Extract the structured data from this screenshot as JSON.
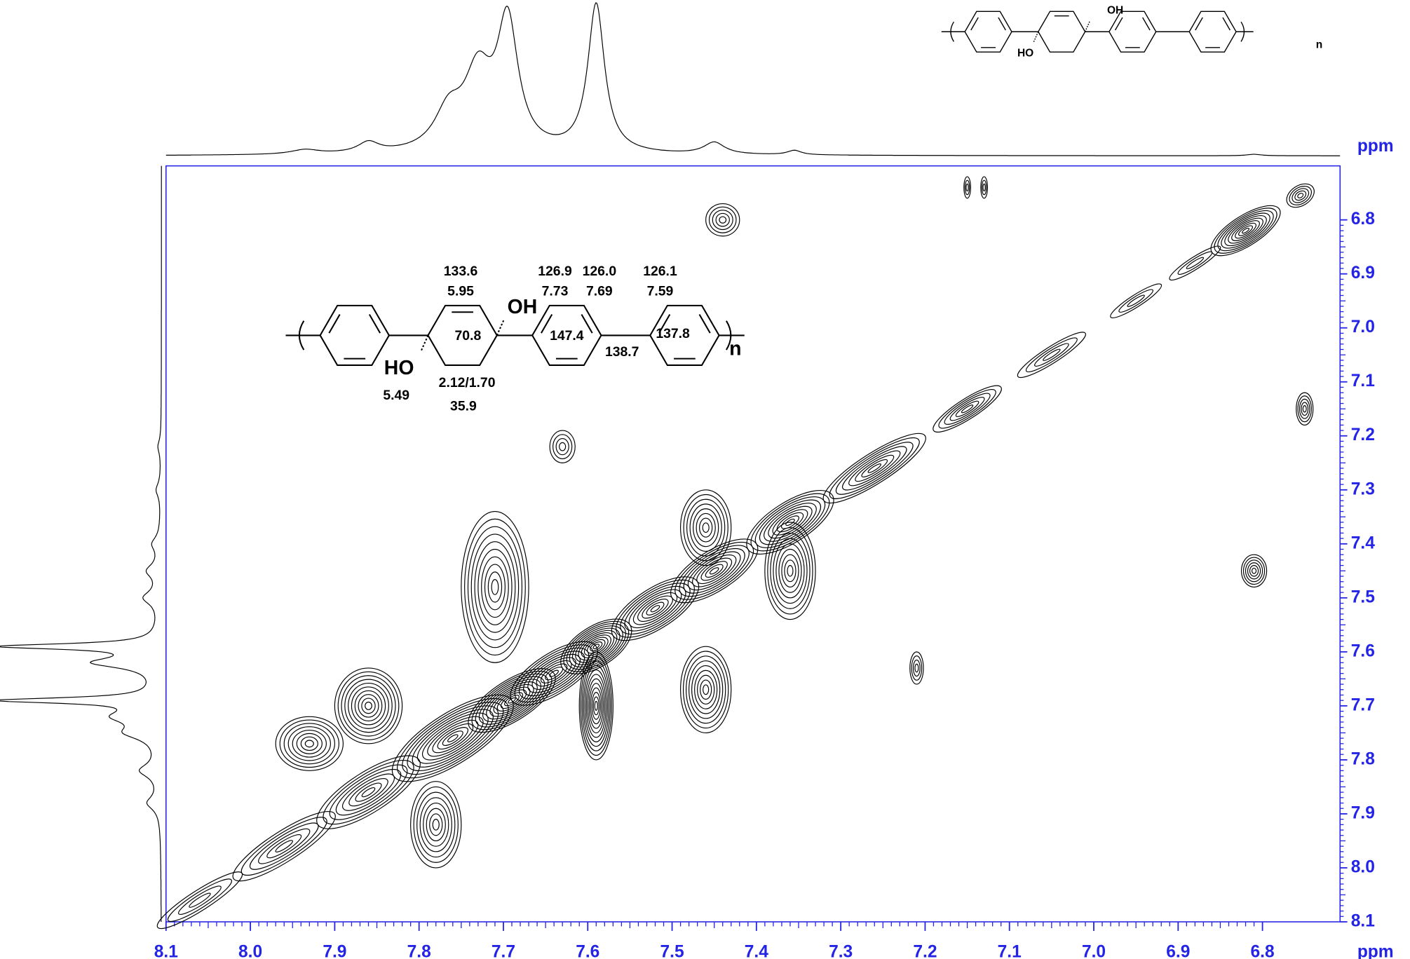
{
  "chart_data": {
    "type": "contour",
    "x_label": "ppm",
    "y_label": "ppm",
    "xlim": [
      8.1,
      6.708
    ],
    "ylim": [
      6.7,
      8.1
    ],
    "xticks": [
      8.1,
      {
        "value": 8,
        "label": "8.0"
      },
      7.9,
      7.8,
      7.7,
      7.6,
      7.5,
      7.4,
      7.3,
      7.2,
      7.1,
      {
        "value": 7,
        "label": "7.0"
      },
      6.9,
      6.8
    ],
    "yticks": [
      6.8,
      6.9,
      {
        "value": 7,
        "label": "7.0"
      },
      7.1,
      7.2,
      7.3,
      7.4,
      7.5,
      7.6,
      7.7,
      7.8,
      7.9,
      {
        "value": 8,
        "label": "8.0"
      },
      8.1
    ],
    "axis_color": "#2424e6",
    "color": "#000000",
    "cross_peaks": {
      "x": [
        7.44,
        6.81,
        7.21,
        7.63,
        6.75,
        7.15,
        7.13,
        7.93,
        7.86,
        7.78,
        7.71,
        7.59,
        7.46,
        7.46,
        7.36
      ],
      "y": [
        6.8,
        7.45,
        7.63,
        7.22,
        7.15,
        6.74,
        6.74,
        7.77,
        7.7,
        7.92,
        7.48,
        7.7,
        7.37,
        7.67,
        7.45
      ],
      "x_width": [
        0.02,
        0.015,
        0.008,
        0.015,
        0.01,
        0.004,
        0.004,
        0.04,
        0.04,
        0.03,
        0.04,
        0.02,
        0.03,
        0.03,
        0.03
      ],
      "y_width": [
        0.03,
        0.03,
        0.03,
        0.03,
        0.03,
        0.02,
        0.02,
        0.05,
        0.07,
        0.08,
        0.14,
        0.1,
        0.07,
        0.08,
        0.09
      ],
      "levels": [
        5,
        6,
        4,
        4,
        5,
        3,
        3,
        8,
        10,
        8,
        10,
        12,
        8,
        9,
        9
      ]
    },
    "diagonal": {
      "position": [
        8.06,
        7.96,
        7.86,
        7.76,
        7.69,
        7.64,
        7.59,
        7.52,
        7.45,
        7.36,
        7.26,
        7.15,
        7.05,
        6.95,
        6.88,
        6.82,
        6.755
      ],
      "length": [
        0.05,
        0.06,
        0.06,
        0.07,
        0.05,
        0.05,
        0.04,
        0.05,
        0.05,
        0.05,
        0.06,
        0.04,
        0.04,
        0.03,
        0.03,
        0.04,
        0.015
      ],
      "width": [
        0.01,
        0.015,
        0.02,
        0.025,
        0.02,
        0.02,
        0.02,
        0.02,
        0.02,
        0.02,
        0.015,
        0.01,
        0.008,
        0.006,
        0.006,
        0.015,
        0.01
      ],
      "levels": [
        4,
        6,
        8,
        12,
        12,
        10,
        12,
        10,
        10,
        10,
        8,
        6,
        4,
        3,
        3,
        10,
        5
      ]
    },
    "projection_top": {
      "peaks": [
        7.59,
        7.695,
        7.73,
        7.765,
        7.86,
        7.935,
        7.45,
        7.355,
        6.81
      ],
      "heights": [
        100,
        85,
        50,
        25,
        7,
        3,
        8,
        3,
        1
      ],
      "widths": [
        0.012,
        0.015,
        0.02,
        0.02,
        0.015,
        0.02,
        0.015,
        0.01,
        0.01
      ],
      "ylim": [
        0,
        100
      ]
    },
    "projection_left": {
      "peaks": [
        7.59,
        7.62,
        7.69,
        7.72,
        7.75,
        7.82,
        7.88,
        7.45,
        7.5,
        7.4,
        7.3,
        7.22
      ],
      "heights": [
        100,
        40,
        100,
        25,
        18,
        12,
        8,
        8,
        10,
        5,
        3,
        2
      ],
      "widths": [
        0.006,
        0.012,
        0.006,
        0.015,
        0.015,
        0.015,
        0.015,
        0.015,
        0.015,
        0.015,
        0.015,
        0.015
      ],
      "ylim": [
        0,
        100
      ]
    },
    "structure": {
      "labels": [
        "133.6",
        "5.95",
        "126.9",
        "7.73",
        "126.0",
        "7.69",
        "126.1",
        "7.59",
        "OH",
        "70.8",
        "147.4",
        "138.7",
        "137.8",
        "n",
        "HO",
        "5.49",
        "2.12/1.70",
        "35.9"
      ]
    },
    "structure_small": {
      "labels": [
        "OH",
        "HO",
        "n"
      ]
    }
  }
}
